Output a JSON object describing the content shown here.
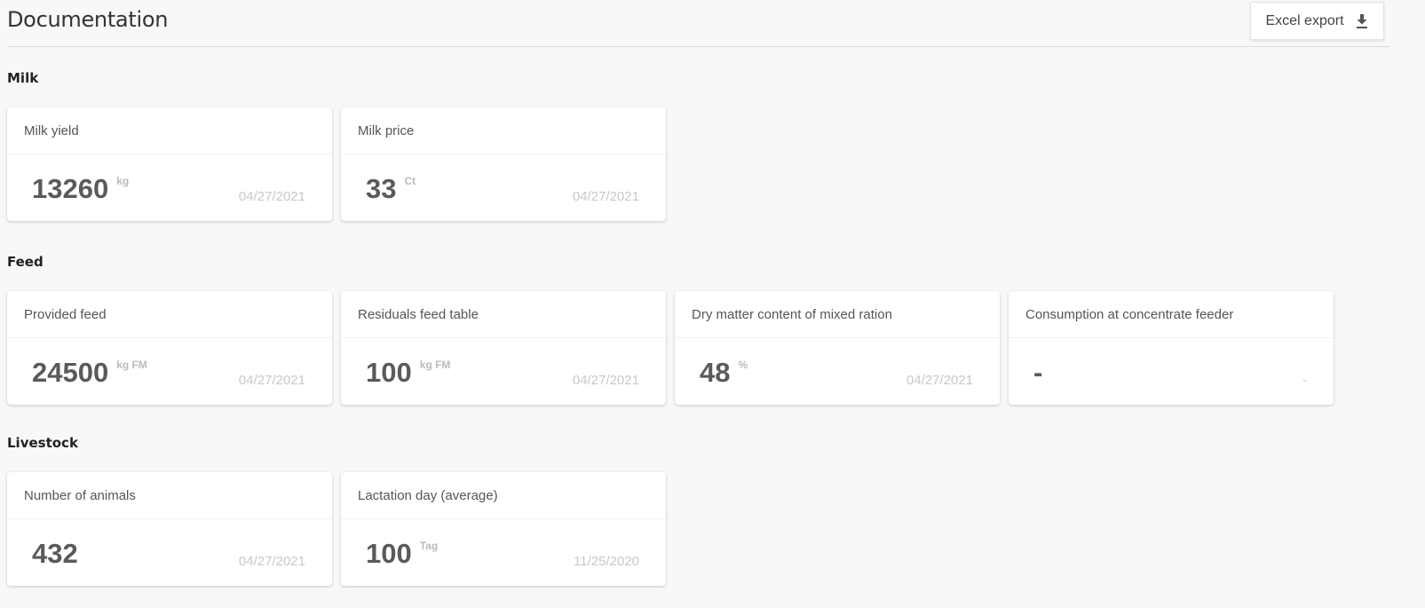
{
  "header": {
    "title": "Documentation",
    "export_label": "Excel export",
    "export_icon": "download-icon"
  },
  "sections": [
    {
      "title": "Milk",
      "cards": [
        {
          "label": "Milk yield",
          "value": "13260",
          "unit": "kg",
          "date": "04/27/2021"
        },
        {
          "label": "Milk price",
          "value": "33",
          "unit": "Ct",
          "date": "04/27/2021"
        }
      ]
    },
    {
      "title": "Feed",
      "cards": [
        {
          "label": "Provided feed",
          "value": "24500",
          "unit": "kg FM",
          "date": "04/27/2021"
        },
        {
          "label": "Residuals feed table",
          "value": "100",
          "unit": "kg FM",
          "date": "04/27/2021"
        },
        {
          "label": "Dry matter content of mixed ration",
          "value": "48",
          "unit": "%",
          "date": "04/27/2021"
        },
        {
          "label": "Consumption at concentrate feeder",
          "value": "-",
          "unit": "",
          "date": "-"
        }
      ]
    },
    {
      "title": "Livestock",
      "cards": [
        {
          "label": "Number of animals",
          "value": "432",
          "unit": "",
          "date": "04/27/2021"
        },
        {
          "label": "Lactation day (average)",
          "value": "100",
          "unit": "Tag",
          "date": "11/25/2020"
        }
      ]
    }
  ]
}
